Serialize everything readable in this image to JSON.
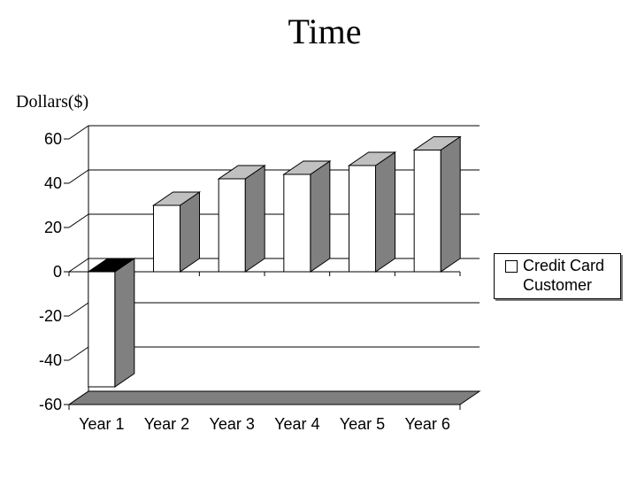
{
  "chart_data": {
    "type": "bar",
    "title": "Time",
    "ylabel": "Dollars($)",
    "xlabel": "",
    "categories": [
      "Year 1",
      "Year 2",
      "Year 3",
      "Year 4",
      "Year 5",
      "Year 6"
    ],
    "series": [
      {
        "name": "Credit Card Customer",
        "values": [
          -52,
          30,
          42,
          44,
          48,
          55
        ]
      }
    ],
    "ylim": [
      -60,
      60
    ],
    "yticks": [
      60,
      40,
      20,
      0,
      -20,
      -40,
      -60
    ],
    "grid": true,
    "legend": "right",
    "projection": "3d",
    "colors": {
      "bar_front": "#ffffff",
      "bar_top": "#c0c0c0",
      "bar_side": "#808080",
      "floor": "#7f7f7f",
      "negative_top": "#000000",
      "grid": "#000000"
    }
  }
}
